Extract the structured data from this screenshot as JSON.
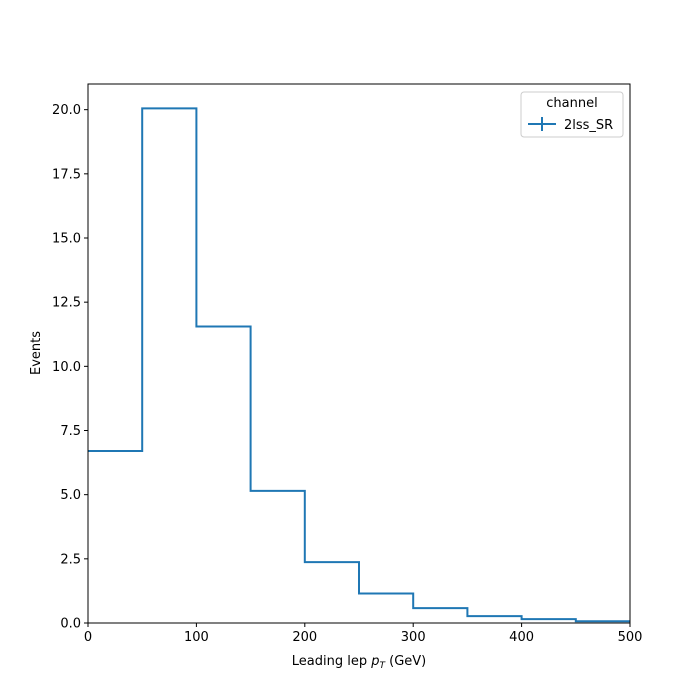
{
  "chart_data": {
    "type": "step",
    "title": "",
    "xlabel": {
      "text": "Leading lep ",
      "math_main": "p",
      "math_sub": "T",
      "unit": " (GeV)"
    },
    "ylabel": "Events",
    "xlim": [
      0,
      500
    ],
    "ylim": [
      0,
      21
    ],
    "xticks": [
      0,
      100,
      200,
      300,
      400,
      500
    ],
    "xtick_labels": [
      "0",
      "100",
      "200",
      "300",
      "400",
      "500"
    ],
    "yticks": [
      0,
      2.5,
      5,
      7.5,
      10,
      12.5,
      15,
      17.5,
      20
    ],
    "ytick_labels": [
      "0.0",
      "2.5",
      "5.0",
      "7.5",
      "10.0",
      "12.5",
      "15.0",
      "17.5",
      "20.0"
    ],
    "grid": false,
    "legend": {
      "title": "channel",
      "placement": "top-right"
    },
    "bin_edges": [
      0,
      50,
      100,
      150,
      200,
      250,
      300,
      350,
      400,
      450,
      500
    ],
    "series": [
      {
        "name": "2lss_SR",
        "color": "#1f77b4",
        "values": [
          6.7,
          20.05,
          11.55,
          5.15,
          2.37,
          1.15,
          0.58,
          0.27,
          0.15,
          0.07
        ]
      }
    ]
  }
}
